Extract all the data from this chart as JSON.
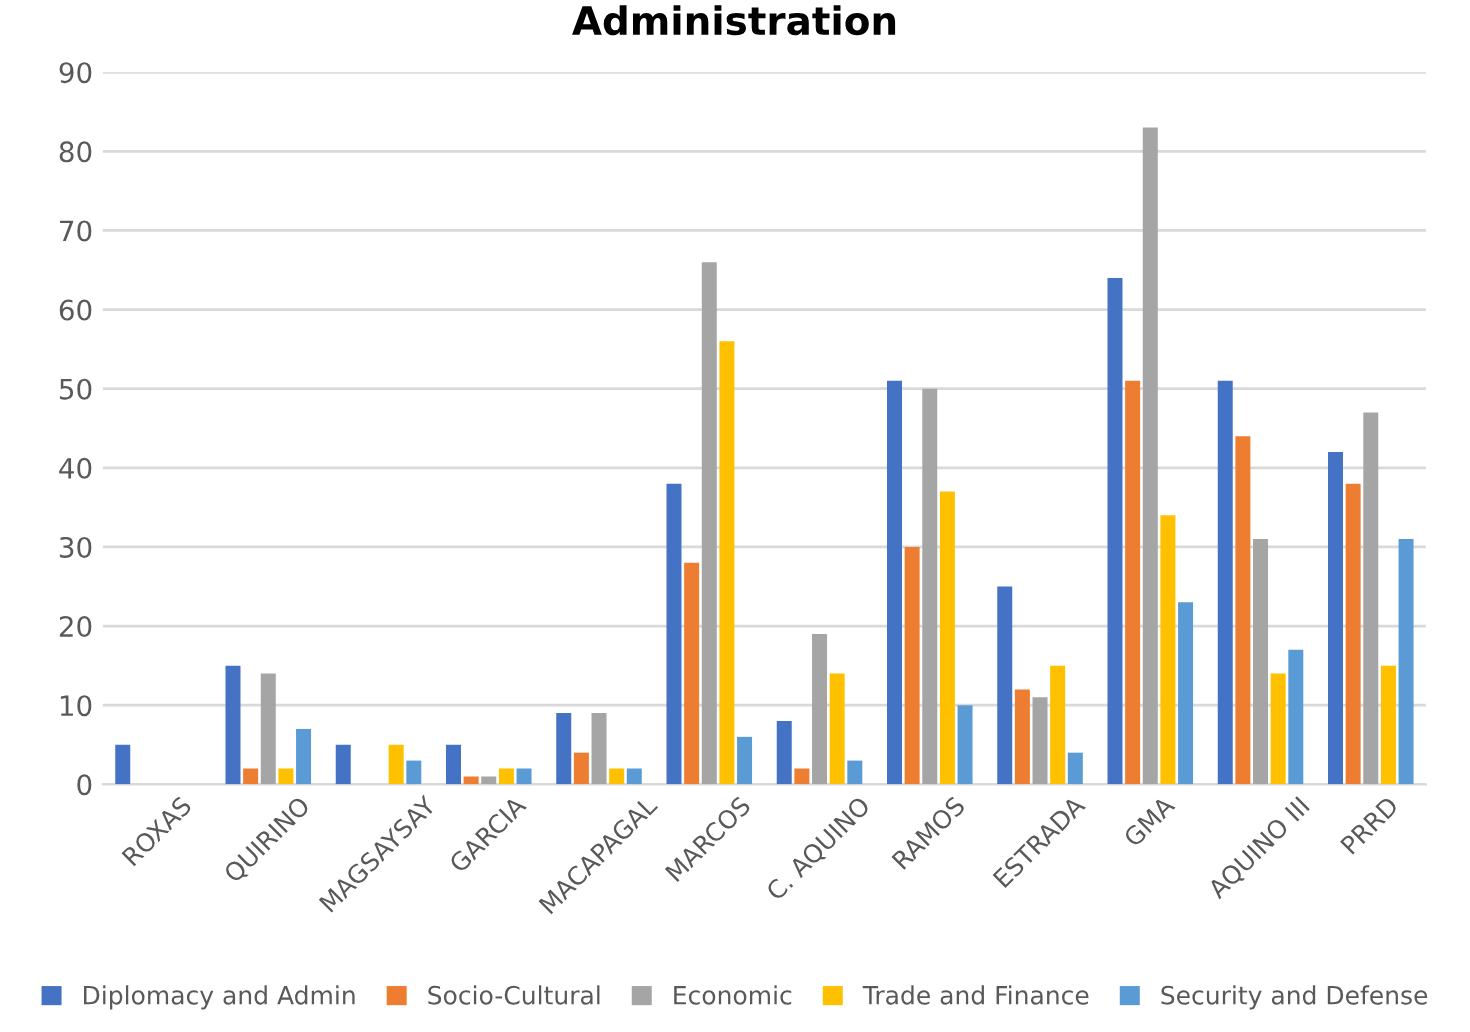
{
  "chart_data": {
    "type": "bar",
    "title": "Administration",
    "categories": [
      "ROXAS",
      "QUIRINO",
      "MAGSAYSAY",
      "GARCIA",
      "MACAPAGAL",
      "MARCOS",
      "C. AQUINO",
      "RAMOS",
      "ESTRADA",
      "GMA",
      "AQUINO III",
      "PRRD"
    ],
    "series": [
      {
        "name": "Diplomacy and Admin",
        "color": "#4472c4",
        "values": [
          5,
          15,
          5,
          5,
          9,
          38,
          8,
          51,
          25,
          64,
          51,
          42
        ]
      },
      {
        "name": "Socio-Cultural",
        "color": "#ed7d31",
        "values": [
          0,
          2,
          0,
          1,
          4,
          28,
          2,
          30,
          12,
          51,
          44,
          38
        ]
      },
      {
        "name": "Economic",
        "color": "#a5a5a5",
        "values": [
          0,
          14,
          0,
          1,
          9,
          66,
          19,
          50,
          11,
          83,
          31,
          47
        ]
      },
      {
        "name": "Trade and Finance",
        "color": "#ffc000",
        "values": [
          0,
          2,
          5,
          2,
          2,
          56,
          14,
          37,
          15,
          34,
          14,
          15
        ]
      },
      {
        "name": "Security and Defense",
        "color": "#5b9bd5",
        "values": [
          0,
          7,
          3,
          2,
          2,
          6,
          3,
          10,
          4,
          23,
          17,
          31
        ]
      }
    ],
    "ylim": [
      0,
      90
    ],
    "yticks": [
      0,
      10,
      20,
      30,
      40,
      50,
      60,
      70,
      80,
      90
    ],
    "grid": "y",
    "legend": "bottom"
  }
}
